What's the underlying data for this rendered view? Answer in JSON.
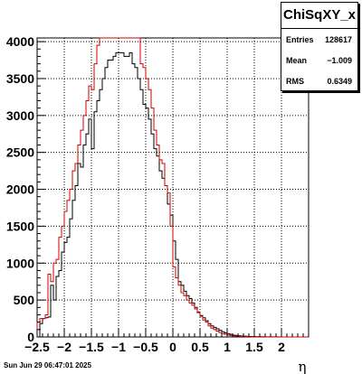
{
  "chart_data": {
    "type": "step-histogram",
    "title": "",
    "xlabel": "η",
    "ylabel": "",
    "xlim": [
      -2.5,
      2.5
    ],
    "ylim": [
      0,
      4050
    ],
    "x_ticks": [
      -2.5,
      -2,
      -1.5,
      -1,
      -0.5,
      0,
      0.5,
      1,
      1.5,
      2
    ],
    "x_tick_labels": [
      "−2.5",
      "−2",
      "−1.5",
      "−1",
      "−0.5",
      "0",
      "0.5",
      "1",
      "1.5",
      "2"
    ],
    "y_ticks": [
      0,
      500,
      1000,
      1500,
      2000,
      2500,
      3000,
      3500,
      4000
    ],
    "y_tick_labels": [
      "0",
      "500",
      "1000",
      "1500",
      "2000",
      "2500",
      "3000",
      "3500",
      "4000"
    ],
    "grid": true,
    "bin_width": 0.05,
    "x_start": -2.5,
    "series": [
      {
        "color": "#000000",
        "values": [
          0,
          180,
          250,
          260,
          270,
          700,
          500,
          820,
          900,
          1150,
          1280,
          1350,
          1600,
          1850,
          2050,
          2350,
          2300,
          2600,
          2750,
          2950,
          2550,
          3050,
          3200,
          3350,
          3500,
          3650,
          3750,
          3750,
          3800,
          3850,
          3850,
          3850,
          3800,
          3800,
          3850,
          3700,
          3650,
          3500,
          3350,
          3150,
          3100,
          2950,
          2750,
          2550,
          2450,
          2250,
          2150,
          2050,
          1800,
          1650,
          1300,
          1050,
          750,
          700,
          620,
          560,
          520,
          460,
          400,
          330,
          290,
          260,
          220,
          180,
          150,
          130,
          110,
          90,
          70,
          55,
          45,
          35,
          25,
          20,
          15,
          12,
          10,
          8,
          6,
          5,
          4,
          3,
          3,
          2,
          2,
          1,
          1,
          1,
          1,
          0,
          0,
          0,
          0,
          0,
          0,
          0,
          0,
          0,
          0,
          0
        ]
      },
      {
        "color": "#d00000",
        "values": [
          200,
          250,
          250,
          300,
          850,
          750,
          1000,
          1050,
          1350,
          1500,
          1700,
          1850,
          2000,
          2250,
          2350,
          2600,
          2800,
          3000,
          3200,
          3400,
          3350,
          3700,
          3950,
          4050,
          4050,
          4050,
          4050,
          4050,
          4050,
          4050,
          4050,
          4050,
          4050,
          4050,
          4050,
          4050,
          4050,
          4050,
          3700,
          3650,
          3500,
          3350,
          3100,
          2800,
          2600,
          2400,
          2350,
          2050,
          1950,
          1500,
          950,
          800,
          700,
          600,
          560,
          500,
          460,
          430,
          380,
          340,
          280,
          230,
          200,
          150,
          120,
          100,
          80,
          60,
          45,
          35,
          25,
          20,
          15,
          10,
          8,
          6,
          5,
          4,
          3,
          2,
          2,
          1,
          1,
          1,
          0,
          0,
          0,
          0,
          0,
          0,
          0,
          0,
          0,
          0,
          0,
          0,
          0,
          0,
          0,
          0
        ]
      }
    ]
  },
  "stats": {
    "title": "ChiSqXY_x",
    "rows": [
      {
        "label": "Entries",
        "value": "128617"
      },
      {
        "label": "Mean",
        "value": "−1.009"
      },
      {
        "label": "RMS",
        "value": "0.6349"
      }
    ]
  },
  "date_stamp": "Sun Jun 29 06:47:01 2025"
}
